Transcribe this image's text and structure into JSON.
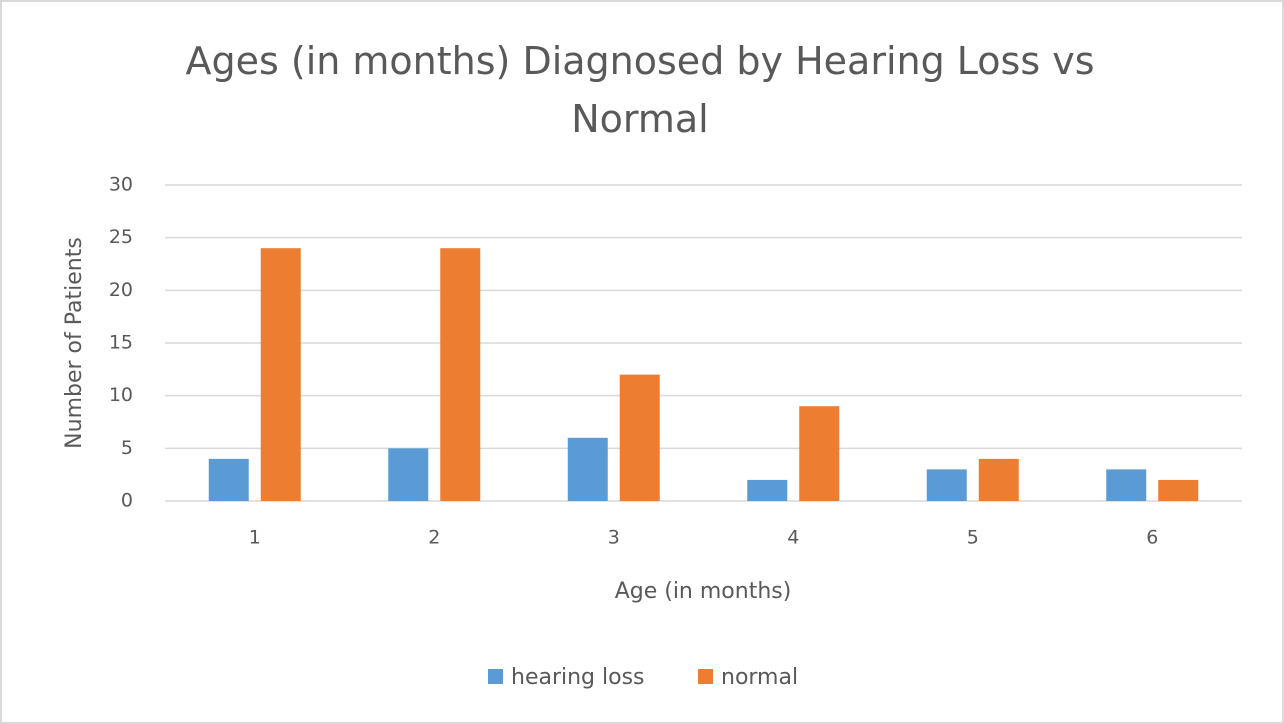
{
  "chart_data": {
    "type": "bar",
    "title": "Ages (in months) Diagnosed by Hearing Loss vs Normal",
    "x_label": "Age  (in months)",
    "y_label": "Number  of Patients",
    "categories": [
      "1",
      "2",
      "3",
      "4",
      "5",
      "6"
    ],
    "series": [
      {
        "name": "hearing loss",
        "color": "#5b9bd5",
        "values": [
          4,
          5,
          6,
          2,
          3,
          3
        ]
      },
      {
        "name": "normal",
        "color": "#ed7d31",
        "values": [
          24,
          24,
          12,
          9,
          4,
          2
        ]
      }
    ],
    "ylim": [
      0,
      30
    ],
    "yticks": [
      0,
      5,
      10,
      15,
      20,
      25,
      30
    ],
    "grid": true,
    "legend": "bottom"
  }
}
